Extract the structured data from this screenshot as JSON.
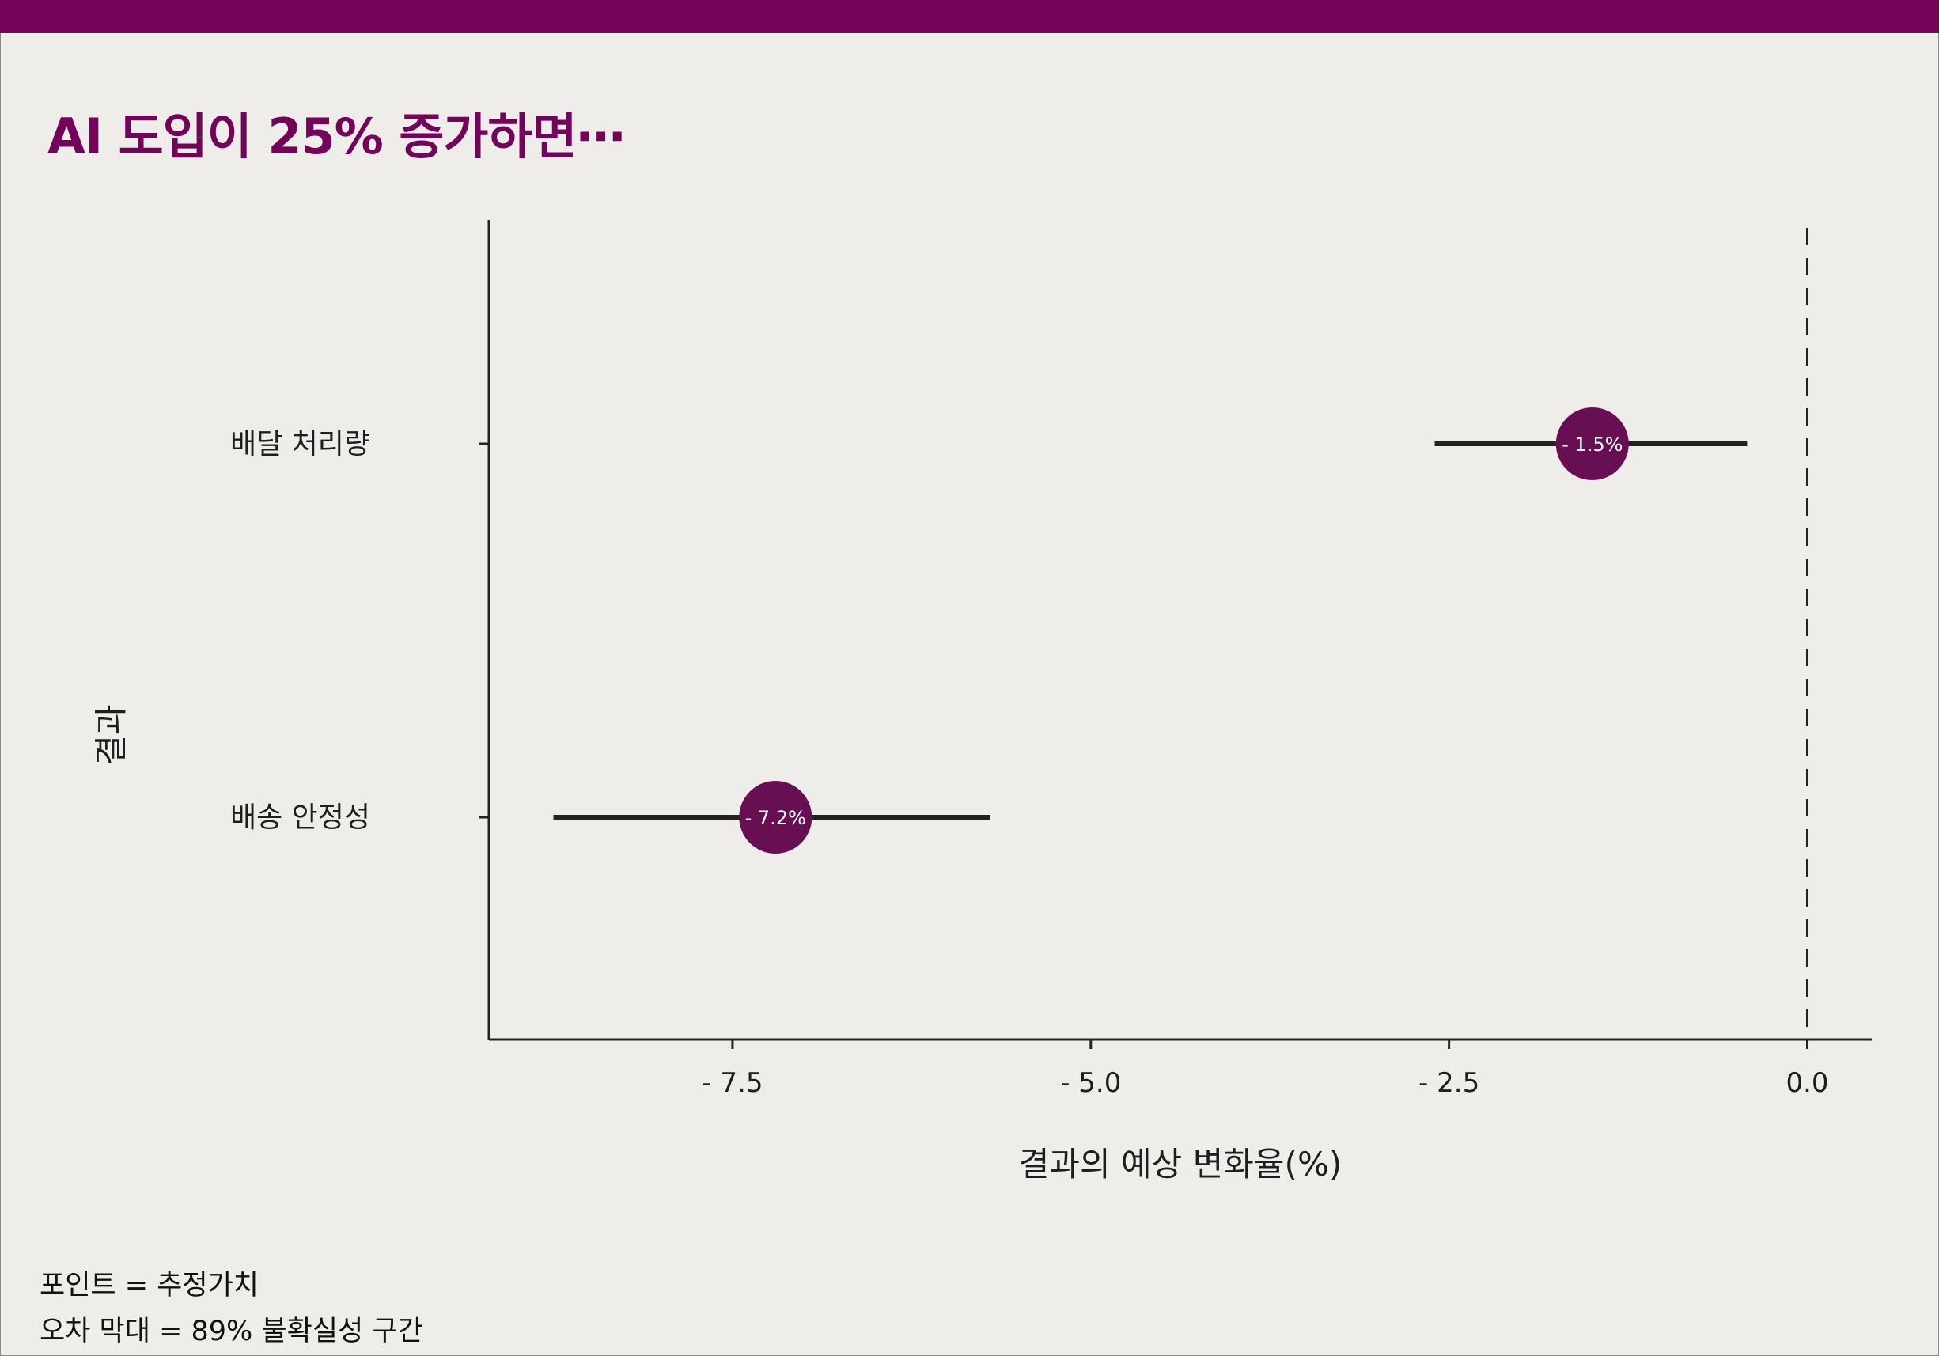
{
  "title": "AI 도입이 25% 증가하면⋯",
  "colors": {
    "accent": "#74045a",
    "point": "#670f52",
    "background": "#efedea",
    "ink": "#222222"
  },
  "chart_data": {
    "type": "scatter",
    "subtype": "point-range",
    "xlabel": "결과의 예상 변화율(%)",
    "ylabel": "결과",
    "xlim": [
      -9.2,
      0.45
    ],
    "xticks": [
      -7.5,
      -5.0,
      -2.5,
      0.0
    ],
    "xtick_labels": [
      "- 7.5",
      "- 5.0",
      "- 2.5",
      "0.0"
    ],
    "reference_line": {
      "x": 0,
      "style": "dashed"
    },
    "categories": [
      "배달 처리량",
      "배송 안정성"
    ],
    "estimates": [
      -1.5,
      -7.2
    ],
    "interval_low": [
      -2.6,
      -8.75
    ],
    "interval_high": [
      -0.42,
      -5.7
    ],
    "point_labels": [
      "- 1.5%",
      "- 7.2%"
    ]
  },
  "notes": [
    "포인트 = 추정가치",
    "오차 막대 = 89% 불확실성 구간"
  ]
}
